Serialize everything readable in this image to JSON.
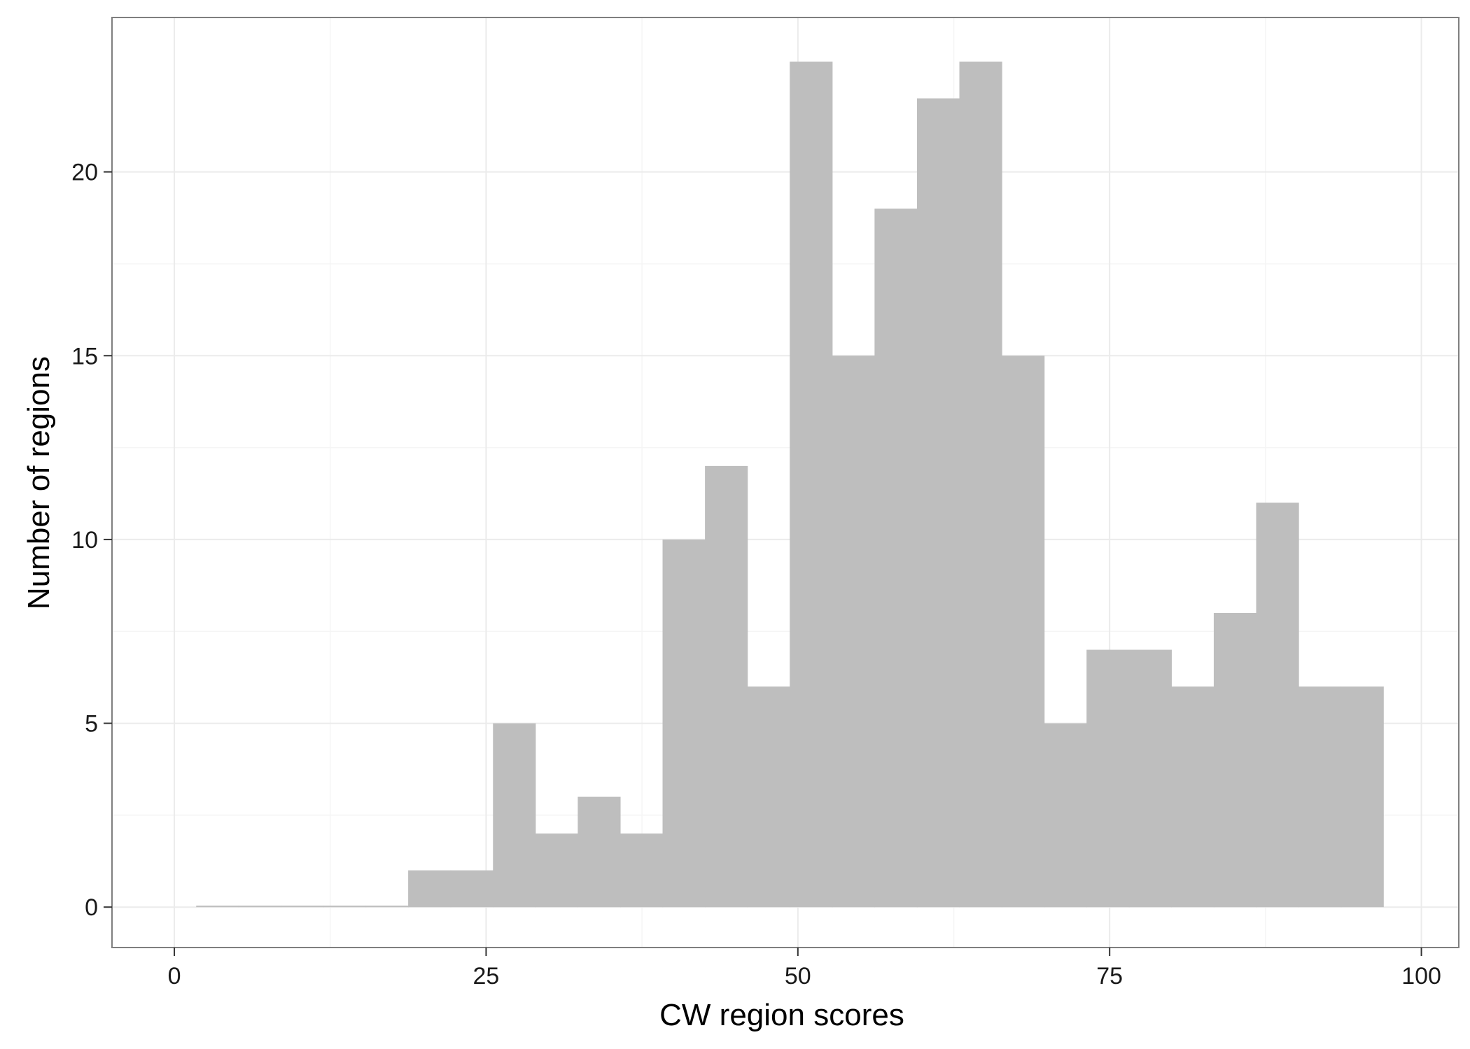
{
  "chart_data": {
    "type": "bar",
    "subtype": "histogram",
    "xlabel": "CW region scores",
    "ylabel": "Number of regions",
    "xlim": [
      -5,
      103
    ],
    "ylim": [
      -1.1,
      24.2
    ],
    "x_ticks": [
      0,
      25,
      50,
      75,
      100
    ],
    "x_tick_labels": [
      "0",
      "25",
      "50",
      "75",
      "100"
    ],
    "y_ticks": [
      0,
      5,
      10,
      15,
      20
    ],
    "y_tick_labels": [
      "0",
      "5",
      "10",
      "15",
      "20"
    ],
    "grid": true,
    "legend": "none",
    "bin_width": 3.4,
    "bin_start": 1.75,
    "values": [
      0,
      0,
      0,
      0,
      0,
      1,
      1,
      5,
      2,
      3,
      2,
      10,
      12,
      6,
      23,
      15,
      19,
      22,
      23,
      15,
      5,
      7,
      7,
      6,
      8,
      11,
      6,
      6
    ],
    "colors": {
      "bar": "#bebebe",
      "panel_border": "#7f7f7f",
      "grid_major": "#ebebeb",
      "grid_minor": "#f5f5f5",
      "tick": "#333333"
    }
  }
}
